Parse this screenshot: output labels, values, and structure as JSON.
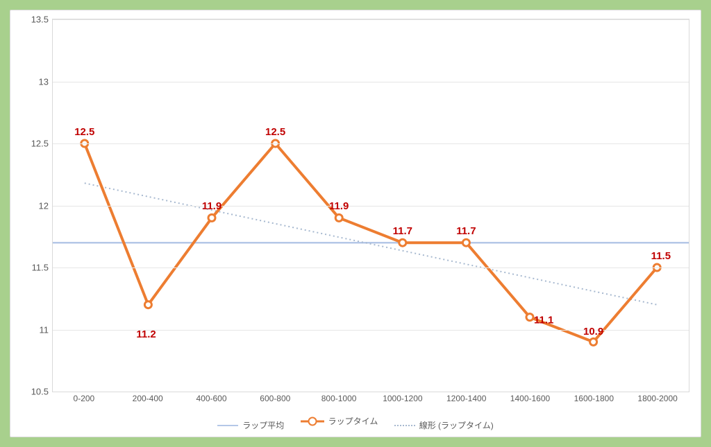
{
  "chart": {
    "type": "line",
    "background_color": "#ffffff",
    "outer_border_color": "#a8d08d",
    "grid_color": "#e6e6e6",
    "axis_label_color": "#595959",
    "axis_fontsize": 13,
    "data_label_color": "#c00000",
    "data_label_fontsize": 15,
    "ylim": [
      10.5,
      13.5
    ],
    "yticks": [
      10.5,
      11,
      11.5,
      12,
      12.5,
      13,
      13.5
    ],
    "ytick_labels": [
      "10.5",
      "11",
      "11.5",
      "12",
      "12.5",
      "13",
      "13.5"
    ],
    "categories": [
      "0-200",
      "200-400",
      "400-600",
      "600-800",
      "800-1000",
      "1000-1200",
      "1200-1400",
      "1400-1600",
      "1600-1800",
      "1800-2000"
    ],
    "series": {
      "lap_average": {
        "label": "ラップ平均",
        "color": "#b4c7e7",
        "line_width": 2.5,
        "value": 11.7
      },
      "lap_time": {
        "label": "ラップタイム",
        "color": "#ed7d31",
        "line_width": 4,
        "marker_size": 10,
        "marker_fill": "#ffffff",
        "values": [
          12.5,
          11.2,
          11.9,
          12.5,
          11.9,
          11.7,
          11.7,
          11.1,
          10.9,
          11.5
        ],
        "data_labels": [
          "12.5",
          "11.2",
          "11.9",
          "12.5",
          "11.9",
          "11.7",
          "11.7",
          "11.1",
          "10.9",
          "11.5"
        ]
      },
      "trend": {
        "label": "線形 (ラップタイム)",
        "color": "#a6b8cf",
        "line_width": 2,
        "dash": "2,4",
        "start_value": 12.18,
        "end_value": 11.2
      }
    },
    "legend_items": [
      {
        "key": "lap_average",
        "text": "ラップ平均"
      },
      {
        "key": "lap_time",
        "text": "ラップタイム"
      },
      {
        "key": "trend",
        "text": "線形 (ラップタイム)"
      }
    ]
  }
}
